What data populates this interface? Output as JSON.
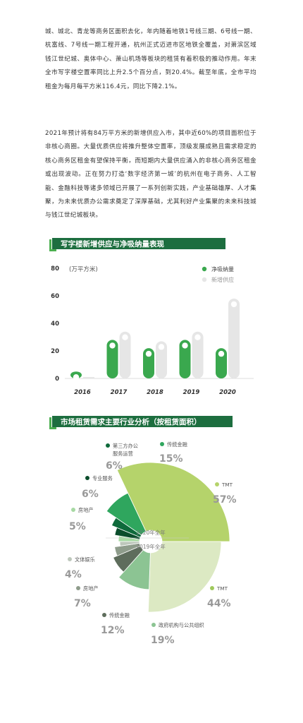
{
  "paragraphs": [
    "城、城北、青龙等商务区面积去化，年内随着地铁1号线三期、6号线一期、杭富线、7号线一期工程开通，杭州正式迈进市区地铁全覆盖，对萧滨区域钱江世纪城、奥体中心、萧山机场等板块的租赁有着积极的推动作用。年末全市写字楼空置率同比上升2.5个百分点，到20.4%。截至年底，全市平均租金为每月每平方米116.4元，同比下降2.1%。",
    "2021年预计将有84万平方米的新增供应入市，其中近60%的项目面积位于非核心商圈。大量优质供应将推升整体空置率，顶级发展成熟且需求稳定的核心商务区租金有望保持平衡，而短期内大量供应涌入的非核心商务区租金或出现波动。正在努力打造‘数字经济第一城’的杭州在电子商务、人工智能、金融科技等诸多领域已开展了一系列创新实践，产业基础雄厚、人才集聚，为未来优质办公需求奠定了深厚基础，尤其利好产业集聚的未来科技城与钱江世纪城板块。"
  ],
  "section1": {
    "title": "写字楼新增供应与净吸纳量表现"
  },
  "section2": {
    "title": "市场租赁需求主要行业分析（按租赁面积）"
  },
  "chart_data": [
    {
      "type": "bar",
      "unit": "(万平方米)",
      "categories": [
        "2016",
        "2017",
        "2018",
        "2019",
        "2020"
      ],
      "series": [
        {
          "name": "净吸纳量",
          "values": [
            5,
            28,
            22,
            28,
            22
          ]
        },
        {
          "name": "新增供应",
          "values": [
            0,
            34,
            27,
            34,
            58
          ]
        }
      ],
      "yticks": [
        "0",
        "20",
        "40",
        "60",
        "80"
      ],
      "ylim": [
        0,
        80
      ],
      "legend_position": "top-right",
      "colors": {
        "absorption": "#3aa84e",
        "supply": "#e6e6e6"
      }
    },
    {
      "type": "pie",
      "title": "2020年全年",
      "slices": [
        {
          "label": "TMT",
          "value": 57,
          "pct": "57%",
          "color": "#b5d36b"
        },
        {
          "label": "传统金融",
          "value": 15,
          "pct": "15%",
          "color": "#2fa65e"
        },
        {
          "label": "第三方办公服务运营",
          "value": 6,
          "pct": "6%",
          "color": "#0e6a3b"
        },
        {
          "label": "专业服务",
          "value": 6,
          "pct": "6%",
          "color": "#0a4d2b"
        },
        {
          "label": "房地产",
          "value": 5,
          "pct": "5%",
          "color": "#a7d9a3"
        }
      ]
    },
    {
      "type": "pie",
      "title": "2019年全年",
      "slices": [
        {
          "label": "TMT",
          "value": 44,
          "pct": "44%",
          "color": "#dce9c3"
        },
        {
          "label": "政府机构与公共组织",
          "value": 19,
          "pct": "19%",
          "color": "#8cc493"
        },
        {
          "label": "传统金融",
          "value": 12,
          "pct": "12%",
          "color": "#5e6d5c"
        },
        {
          "label": "房地产",
          "value": 7,
          "pct": "7%",
          "color": "#8e9c8b"
        },
        {
          "label": "文体娱乐",
          "value": 4,
          "pct": "4%",
          "color": "#bdc7bb"
        }
      ]
    }
  ]
}
